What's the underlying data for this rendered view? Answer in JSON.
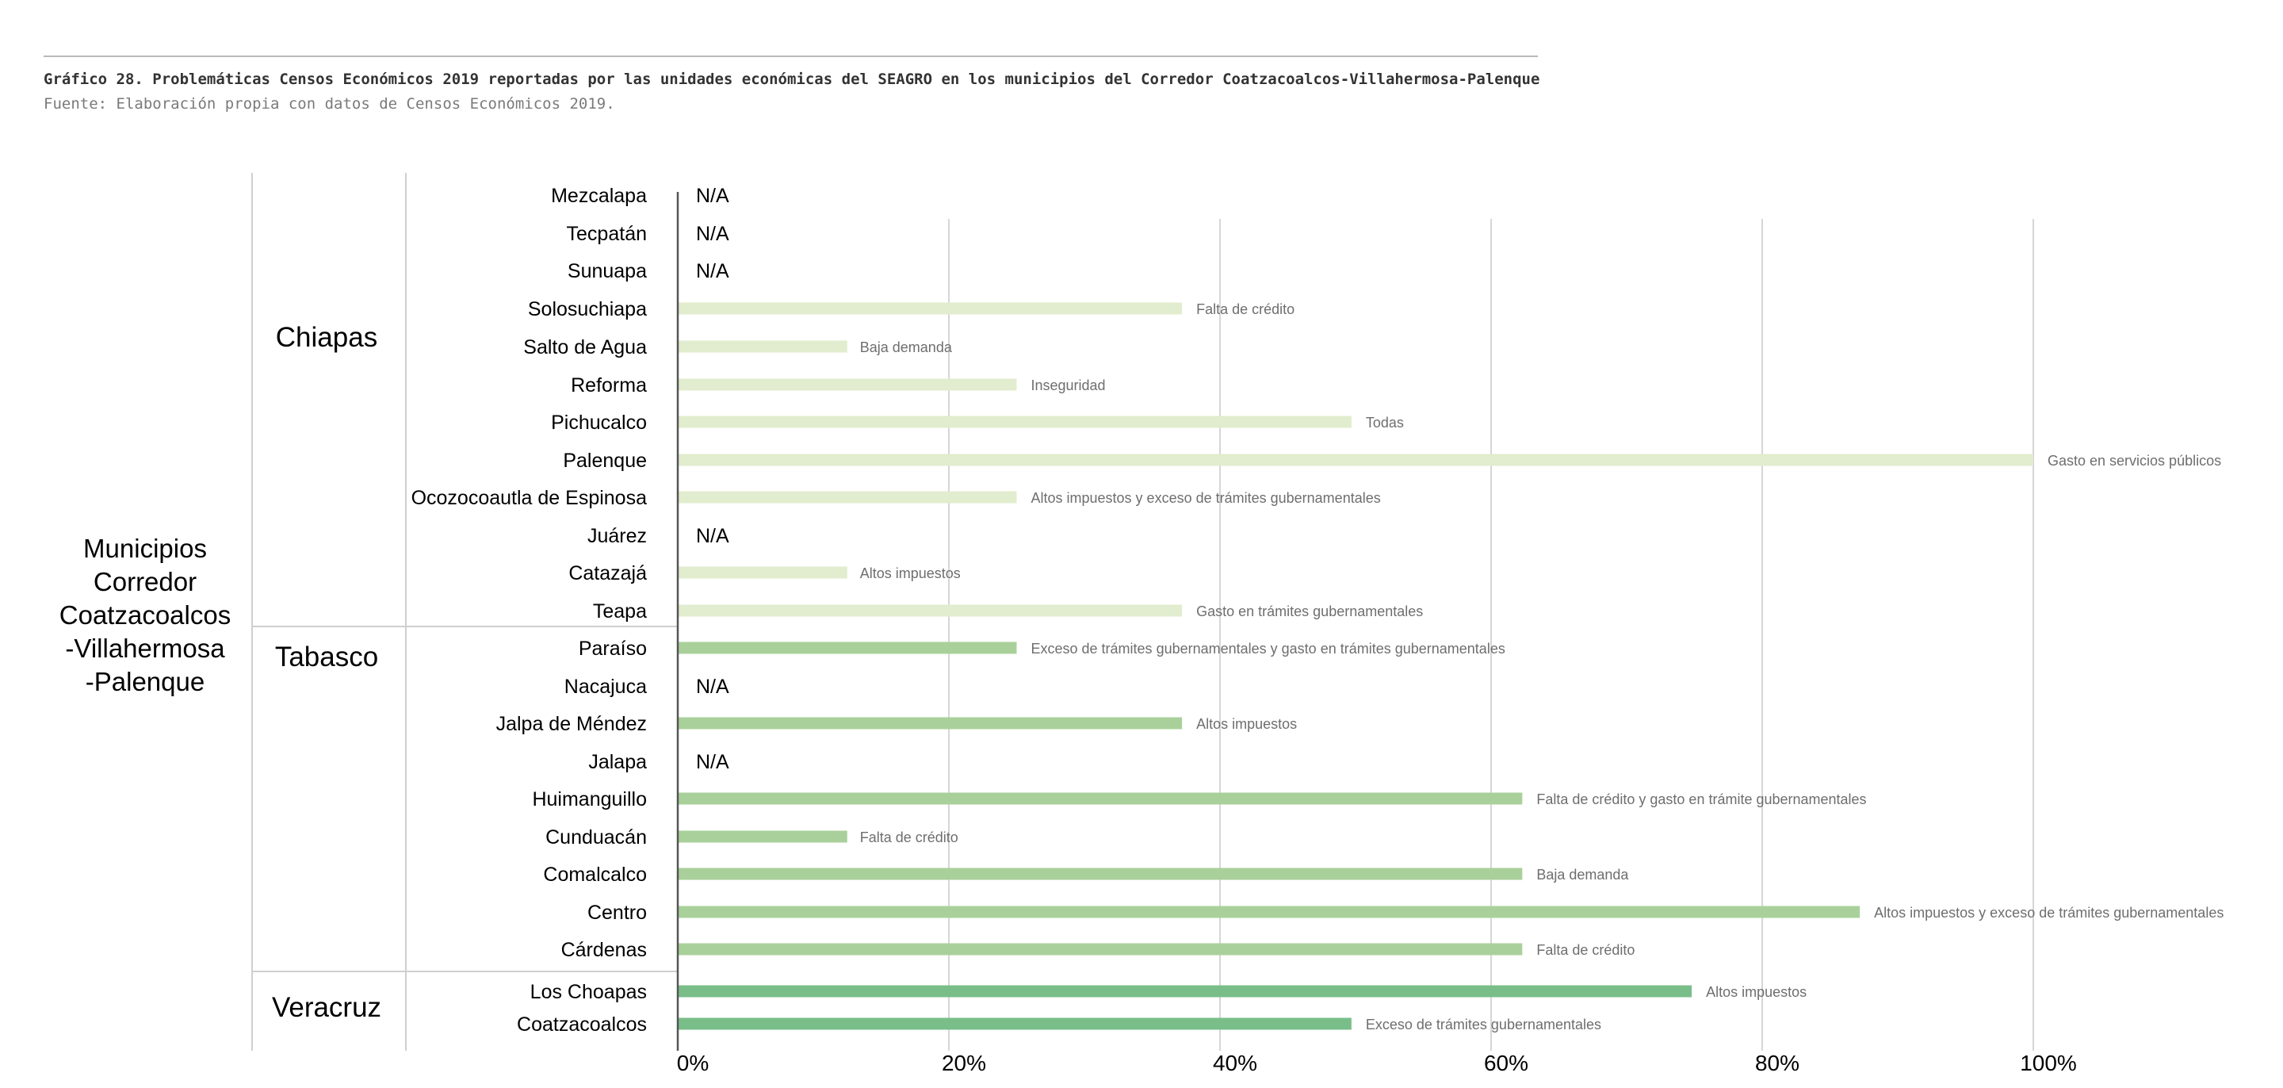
{
  "header": {
    "title": "Gráfico 28. Problemáticas Censos Económicos 2019 reportadas por las unidades económicas del SEAGRO en los municipios del Corredor Coatzacoalcos-Villahermosa-Palenque",
    "source": "Fuente: Elaboración propia con datos de Censos Económicos 2019."
  },
  "row_header": {
    "lines": [
      "Municipios",
      "Corredor",
      "Coatzacoalcos",
      "-Villahermosa",
      "-Palenque"
    ]
  },
  "chart_data": {
    "type": "bar",
    "orientation": "horizontal",
    "xlim": [
      0,
      1
    ],
    "x_ticks": [
      "0%",
      "20%",
      "40%",
      "60%",
      "80%",
      "100%"
    ],
    "grid": true,
    "colors": {
      "Chiapas": "#e2ecce",
      "Tabasco": "#a9d09a",
      "Veracruz": "#79be89"
    },
    "groups": [
      {
        "state": "Chiapas",
        "rows": [
          {
            "municipio": "Mezcalapa",
            "value": null,
            "label": "N/A"
          },
          {
            "municipio": "Tecpatán",
            "value": null,
            "label": "N/A"
          },
          {
            "municipio": "Sunuapa",
            "value": null,
            "label": "N/A"
          },
          {
            "municipio": "Solosuchiapa",
            "value": 0.372,
            "label": "Falta de crédito"
          },
          {
            "municipio": "Salto de Agua",
            "value": 0.125,
            "label": "Baja demanda"
          },
          {
            "municipio": "Reforma",
            "value": 0.25,
            "label": "Inseguridad"
          },
          {
            "municipio": "Pichucalco",
            "value": 0.497,
            "label": "Todas"
          },
          {
            "municipio": "Palenque",
            "value": 1.0,
            "label": "Gasto en servicios públicos"
          },
          {
            "municipio": "Ocozocoautla de Espinosa",
            "value": 0.25,
            "label": "Altos impuestos y exceso de trámites gubernamentales"
          },
          {
            "municipio": "Juárez",
            "value": null,
            "label": "N/A"
          },
          {
            "municipio": "Catazajá",
            "value": 0.125,
            "label": "Altos impuestos"
          },
          {
            "municipio": "Teapa",
            "value": 0.372,
            "label": "Gasto en trámites gubernamentales"
          }
        ]
      },
      {
        "state": "Tabasco",
        "rows": [
          {
            "municipio": "Paraíso",
            "value": 0.25,
            "label": "Exceso de trámites gubernamentales y gasto en trámites gubernamentales"
          },
          {
            "municipio": "Nacajuca",
            "value": null,
            "label": "N/A"
          },
          {
            "municipio": "Jalpa de Méndez",
            "value": 0.372,
            "label": "Altos impuestos"
          },
          {
            "municipio": "Jalapa",
            "value": null,
            "label": "N/A"
          },
          {
            "municipio": "Huimanguillo",
            "value": 0.623,
            "label": "Falta de crédito y gasto en trámite gubernamentales"
          },
          {
            "municipio": "Cunduacán",
            "value": 0.125,
            "label": "Falta de crédito"
          },
          {
            "municipio": "Comalcalco",
            "value": 0.623,
            "label": "Baja demanda"
          },
          {
            "municipio": "Centro",
            "value": 0.872,
            "label": "Altos impuestos y exceso de trámites gubernamentales"
          },
          {
            "municipio": "Cárdenas",
            "value": 0.623,
            "label": "Falta de crédito"
          }
        ]
      },
      {
        "state": "Veracruz",
        "rows": [
          {
            "municipio": "Los Choapas",
            "value": 0.748,
            "label": "Altos impuestos"
          },
          {
            "municipio": "Coatzacoalcos",
            "value": 0.497,
            "label": "Exceso de trámites gubernamentales"
          }
        ]
      }
    ]
  }
}
